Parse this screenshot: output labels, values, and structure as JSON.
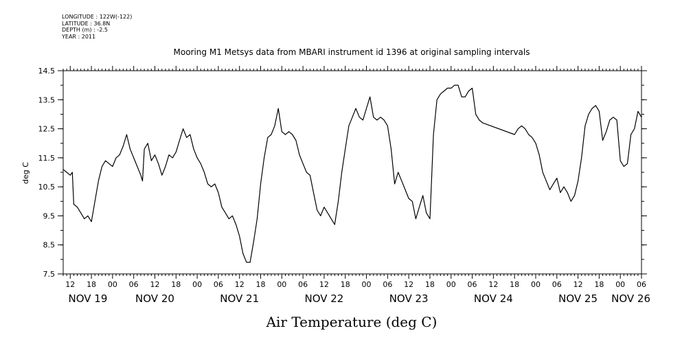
{
  "metadata": {
    "longitude": "LONGITUDE : 122W(-122)",
    "latitude": "LATITUDE : 36.8N",
    "depth": "DEPTH (m) : -2.5",
    "year": "YEAR : 2011"
  },
  "chart_data": {
    "type": "line",
    "title": "Mooring M1 Metsys data from MBARI instrument id 1396 at original sampling intervals",
    "xlabel": "Air Temperature (deg C)",
    "ylabel": "deg C",
    "ylim": [
      7.5,
      14.5
    ],
    "y_ticks": [
      "7.5",
      "8.5",
      "9.5",
      "10.5",
      "11.5",
      "12.5",
      "13.5",
      "14.5"
    ],
    "x_range_hours": [
      0,
      164
    ],
    "x_hour_ticks": [
      {
        "t": 2,
        "label": "12"
      },
      {
        "t": 8,
        "label": "18"
      },
      {
        "t": 14,
        "label": "00"
      },
      {
        "t": 20,
        "label": "06"
      },
      {
        "t": 26,
        "label": "12"
      },
      {
        "t": 32,
        "label": "18"
      },
      {
        "t": 38,
        "label": "00"
      },
      {
        "t": 44,
        "label": "06"
      },
      {
        "t": 50,
        "label": "12"
      },
      {
        "t": 56,
        "label": "18"
      },
      {
        "t": 62,
        "label": "00"
      },
      {
        "t": 68,
        "label": "06"
      },
      {
        "t": 74,
        "label": "12"
      },
      {
        "t": 80,
        "label": "18"
      },
      {
        "t": 86,
        "label": "00"
      },
      {
        "t": 92,
        "label": "06"
      },
      {
        "t": 98,
        "label": "12"
      },
      {
        "t": 104,
        "label": "18"
      },
      {
        "t": 110,
        "label": "00"
      },
      {
        "t": 116,
        "label": "06"
      },
      {
        "t": 122,
        "label": "12"
      },
      {
        "t": 128,
        "label": "18"
      },
      {
        "t": 134,
        "label": "00"
      },
      {
        "t": 140,
        "label": "06"
      },
      {
        "t": 146,
        "label": "12"
      },
      {
        "t": 152,
        "label": "18"
      },
      {
        "t": 158,
        "label": "00"
      },
      {
        "t": 164,
        "label": "06"
      }
    ],
    "x_date_labels": [
      {
        "t": 7,
        "label": "NOV 19"
      },
      {
        "t": 26,
        "label": "NOV 20"
      },
      {
        "t": 50,
        "label": "NOV 21"
      },
      {
        "t": 74,
        "label": "NOV 22"
      },
      {
        "t": 98,
        "label": "NOV 23"
      },
      {
        "t": 122,
        "label": "NOV 24"
      },
      {
        "t": 146,
        "label": "NOV 25"
      },
      {
        "t": 161,
        "label": "NOV 26"
      }
    ],
    "series": [
      {
        "color": "#000000",
        "points": [
          [
            0,
            11.1
          ],
          [
            1,
            11.0
          ],
          [
            2,
            10.9
          ],
          [
            2.6,
            11.0
          ],
          [
            3,
            9.9
          ],
          [
            4,
            9.8
          ],
          [
            5,
            9.6
          ],
          [
            6,
            9.4
          ],
          [
            7,
            9.5
          ],
          [
            8,
            9.3
          ],
          [
            9,
            10.0
          ],
          [
            10,
            10.7
          ],
          [
            11,
            11.2
          ],
          [
            12,
            11.4
          ],
          [
            13,
            11.3
          ],
          [
            14,
            11.2
          ],
          [
            15,
            11.5
          ],
          [
            16,
            11.6
          ],
          [
            17,
            11.9
          ],
          [
            18,
            12.3
          ],
          [
            19,
            11.8
          ],
          [
            20,
            11.5
          ],
          [
            21,
            11.2
          ],
          [
            22,
            10.9
          ],
          [
            22.5,
            10.7
          ],
          [
            23,
            11.8
          ],
          [
            24,
            12.0
          ],
          [
            25,
            11.4
          ],
          [
            26,
            11.6
          ],
          [
            27,
            11.3
          ],
          [
            28,
            10.9
          ],
          [
            29,
            11.2
          ],
          [
            30,
            11.6
          ],
          [
            31,
            11.5
          ],
          [
            32,
            11.7
          ],
          [
            33,
            12.1
          ],
          [
            34,
            12.5
          ],
          [
            35,
            12.2
          ],
          [
            36,
            12.3
          ],
          [
            37,
            11.8
          ],
          [
            38,
            11.5
          ],
          [
            39,
            11.3
          ],
          [
            40,
            11.0
          ],
          [
            41,
            10.6
          ],
          [
            42,
            10.5
          ],
          [
            43,
            10.6
          ],
          [
            44,
            10.3
          ],
          [
            45,
            9.8
          ],
          [
            46,
            9.6
          ],
          [
            47,
            9.4
          ],
          [
            48,
            9.5
          ],
          [
            49,
            9.2
          ],
          [
            50,
            8.8
          ],
          [
            51,
            8.2
          ],
          [
            52,
            7.9
          ],
          [
            53,
            7.9
          ],
          [
            54,
            8.6
          ],
          [
            55,
            9.4
          ],
          [
            56,
            10.6
          ],
          [
            57,
            11.5
          ],
          [
            58,
            12.2
          ],
          [
            59,
            12.3
          ],
          [
            60,
            12.6
          ],
          [
            61,
            13.2
          ],
          [
            62,
            12.4
          ],
          [
            63,
            12.3
          ],
          [
            64,
            12.4
          ],
          [
            65,
            12.3
          ],
          [
            66,
            12.1
          ],
          [
            67,
            11.6
          ],
          [
            68,
            11.3
          ],
          [
            69,
            11.0
          ],
          [
            70,
            10.9
          ],
          [
            71,
            10.3
          ],
          [
            72,
            9.7
          ],
          [
            73,
            9.5
          ],
          [
            74,
            9.8
          ],
          [
            75,
            9.6
          ],
          [
            76,
            9.4
          ],
          [
            77,
            9.2
          ],
          [
            78,
            10.0
          ],
          [
            79,
            11.0
          ],
          [
            80,
            11.8
          ],
          [
            81,
            12.6
          ],
          [
            82,
            12.9
          ],
          [
            83,
            13.2
          ],
          [
            84,
            12.9
          ],
          [
            85,
            12.8
          ],
          [
            86,
            13.2
          ],
          [
            87,
            13.6
          ],
          [
            88,
            12.9
          ],
          [
            89,
            12.8
          ],
          [
            90,
            12.9
          ],
          [
            91,
            12.8
          ],
          [
            92,
            12.6
          ],
          [
            93,
            11.8
          ],
          [
            94,
            10.6
          ],
          [
            95,
            11.0
          ],
          [
            96,
            10.7
          ],
          [
            97,
            10.4
          ],
          [
            98,
            10.1
          ],
          [
            99,
            10.0
          ],
          [
            100,
            9.4
          ],
          [
            101,
            9.8
          ],
          [
            102,
            10.2
          ],
          [
            103,
            9.6
          ],
          [
            104,
            9.4
          ],
          [
            105,
            12.3
          ],
          [
            106,
            13.5
          ],
          [
            107,
            13.7
          ],
          [
            108,
            13.8
          ],
          [
            109,
            13.9
          ],
          [
            110,
            13.9
          ],
          [
            111,
            14.0
          ],
          [
            112,
            14.0
          ],
          [
            113,
            13.6
          ],
          [
            114,
            13.6
          ],
          [
            115,
            13.8
          ],
          [
            116,
            13.9
          ],
          [
            117,
            13.0
          ],
          [
            118,
            12.8
          ],
          [
            119,
            12.7
          ],
          [
            128,
            12.3
          ],
          [
            129,
            12.5
          ],
          [
            130,
            12.6
          ],
          [
            131,
            12.5
          ],
          [
            132,
            12.3
          ],
          [
            133,
            12.2
          ],
          [
            134,
            12.0
          ],
          [
            135,
            11.6
          ],
          [
            136,
            11.0
          ],
          [
            137,
            10.7
          ],
          [
            138,
            10.4
          ],
          [
            139,
            10.6
          ],
          [
            140,
            10.8
          ],
          [
            141,
            10.3
          ],
          [
            142,
            10.5
          ],
          [
            143,
            10.3
          ],
          [
            144,
            10.0
          ],
          [
            145,
            10.2
          ],
          [
            146,
            10.7
          ],
          [
            147,
            11.5
          ],
          [
            148,
            12.6
          ],
          [
            149,
            13.0
          ],
          [
            150,
            13.2
          ],
          [
            151,
            13.3
          ],
          [
            152,
            13.1
          ],
          [
            153,
            12.1
          ],
          [
            154,
            12.4
          ],
          [
            155,
            12.8
          ],
          [
            156,
            12.9
          ],
          [
            157,
            12.8
          ],
          [
            158,
            11.4
          ],
          [
            159,
            11.2
          ],
          [
            160,
            11.3
          ],
          [
            161,
            12.3
          ],
          [
            162,
            12.5
          ],
          [
            163,
            13.1
          ],
          [
            164,
            12.9
          ]
        ]
      }
    ]
  }
}
